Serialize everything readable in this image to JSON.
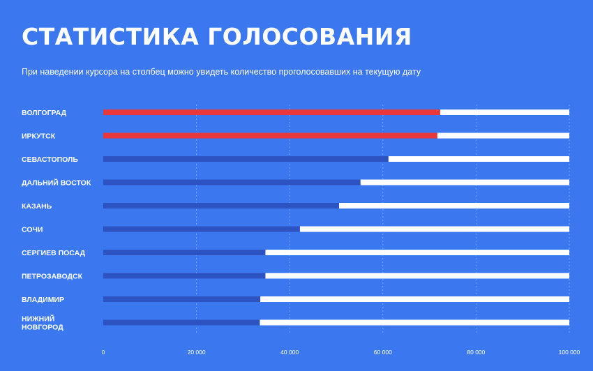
{
  "header": {
    "title": "СТАТИСТИКА ГОЛОСОВАНИЯ",
    "subtitle": "При наведении курсора на столбец можно увидеть количество проголосовавших на текущую дату"
  },
  "colors": {
    "background": "#3b78f0",
    "track": "#ffffff",
    "bar_default": "#2d53c2",
    "bar_highlight": "#e8383b",
    "grid": "#7fa4f5"
  },
  "chart_data": {
    "type": "bar",
    "orientation": "horizontal",
    "title": "СТАТИСТИКА ГОЛОСОВАНИЯ",
    "subtitle": "При наведении курсора на столбец можно увидеть количество проголосовавших на текущую дату",
    "categories": [
      "ВОЛГОГРАД",
      "ИРКУТСК",
      "СЕВАСТОПОЛЬ",
      "ДАЛЬНИЙ ВОСТОК",
      "КАЗАНЬ",
      "СОЧИ",
      "СЕРГИЕВ ПОСАД",
      "ПЕТРОЗАВОДСК",
      "ВЛАДИМИР",
      "НИЖНИЙ НОВГОРОД"
    ],
    "values": [
      72300,
      71700,
      61200,
      55200,
      50600,
      42200,
      34800,
      34800,
      33700,
      33600
    ],
    "highlighted": [
      true,
      true,
      false,
      false,
      false,
      false,
      false,
      false,
      false,
      false
    ],
    "xlim": [
      0,
      100000
    ],
    "xticks": [
      0,
      20000,
      40000,
      60000,
      80000,
      100000
    ],
    "xtick_labels": [
      "0",
      "20 000",
      "40 000",
      "60 000",
      "80 000",
      "100 000"
    ],
    "grid": true
  }
}
